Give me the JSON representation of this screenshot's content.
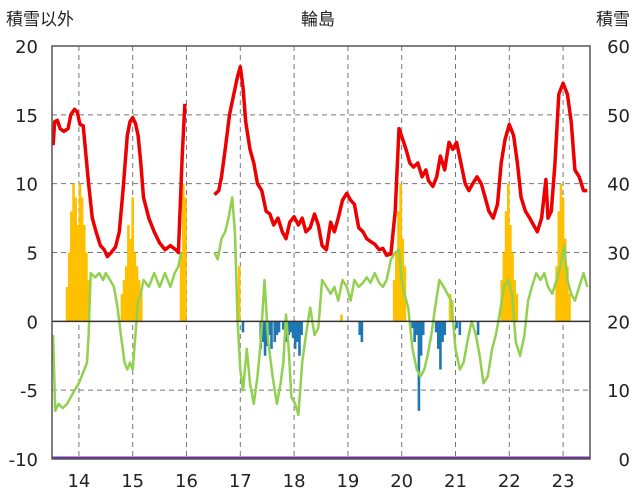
{
  "chart_data": {
    "type": "line",
    "title": "輪島",
    "left_axis_label": "積雪以外",
    "right_axis_label": "積雪",
    "left_ylim": [
      -10,
      20
    ],
    "left_ticks": [
      "20",
      "15",
      "10",
      "5",
      "0",
      "-5",
      "-10"
    ],
    "right_ylim": [
      0,
      60
    ],
    "right_ticks": [
      "60",
      "50",
      "40",
      "30",
      "20",
      "10",
      "0"
    ],
    "x_ticks": [
      {
        "label": "14",
        "x": 1.0
      },
      {
        "label": "15",
        "x": 2.0
      },
      {
        "label": "16",
        "x": 3.0
      },
      {
        "label": "17",
        "x": 4.0
      },
      {
        "label": "18",
        "x": 5.0
      },
      {
        "label": "19",
        "x": 6.0
      },
      {
        "label": "20",
        "x": 7.0
      },
      {
        "label": "21",
        "x": 8.0
      },
      {
        "label": "22",
        "x": 9.0
      },
      {
        "label": "23",
        "x": 10.0
      }
    ],
    "xlim": [
      0.5,
      10.5
    ],
    "grid": true,
    "colors": {
      "red": "#ee0000",
      "green": "#92d050",
      "orange": "#ffc000",
      "blue": "#1f77b4",
      "purple": "#7030a0"
    },
    "series_red": [
      [
        0.52,
        12.8
      ],
      [
        0.55,
        14.5
      ],
      [
        0.6,
        14.6
      ],
      [
        0.65,
        14.0
      ],
      [
        0.72,
        13.8
      ],
      [
        0.8,
        14.0
      ],
      [
        0.85,
        15.0
      ],
      [
        0.92,
        15.4
      ],
      [
        0.97,
        15.2
      ],
      [
        1.02,
        14.3
      ],
      [
        1.08,
        14.2
      ],
      [
        1.12,
        12.5
      ],
      [
        1.18,
        10.0
      ],
      [
        1.25,
        7.5
      ],
      [
        1.32,
        6.5
      ],
      [
        1.4,
        5.5
      ],
      [
        1.47,
        5.2
      ],
      [
        1.53,
        4.7
      ],
      [
        1.6,
        5.0
      ],
      [
        1.68,
        5.4
      ],
      [
        1.75,
        6.5
      ],
      [
        1.82,
        9.5
      ],
      [
        1.9,
        13.5
      ],
      [
        1.95,
        14.5
      ],
      [
        2.0,
        14.8
      ],
      [
        2.05,
        14.4
      ],
      [
        2.1,
        13.5
      ],
      [
        2.15,
        11.5
      ],
      [
        2.2,
        9.0
      ],
      [
        2.3,
        7.5
      ],
      [
        2.4,
        6.5
      ],
      [
        2.5,
        5.7
      ],
      [
        2.6,
        5.2
      ],
      [
        2.7,
        5.5
      ],
      [
        2.8,
        5.2
      ],
      [
        2.85,
        5.0
      ],
      [
        2.92,
        12.0
      ],
      [
        2.97,
        15.8
      ],
      [
        3.52,
        9.2
      ],
      [
        3.6,
        9.5
      ],
      [
        3.65,
        10.5
      ],
      [
        3.72,
        12.5
      ],
      [
        3.8,
        15.0
      ],
      [
        3.88,
        16.5
      ],
      [
        3.95,
        17.8
      ],
      [
        4.0,
        18.5
      ],
      [
        4.05,
        17.0
      ],
      [
        4.1,
        14.5
      ],
      [
        4.18,
        12.5
      ],
      [
        4.25,
        11.5
      ],
      [
        4.32,
        10.0
      ],
      [
        4.4,
        9.5
      ],
      [
        4.48,
        8.0
      ],
      [
        4.55,
        7.8
      ],
      [
        4.62,
        7.0
      ],
      [
        4.7,
        7.5
      ],
      [
        4.78,
        6.5
      ],
      [
        4.85,
        6.0
      ],
      [
        4.92,
        7.2
      ],
      [
        5.0,
        7.6
      ],
      [
        5.08,
        7.0
      ],
      [
        5.15,
        7.5
      ],
      [
        5.22,
        6.5
      ],
      [
        5.3,
        6.8
      ],
      [
        5.38,
        7.8
      ],
      [
        5.45,
        7.0
      ],
      [
        5.52,
        5.5
      ],
      [
        5.6,
        5.2
      ],
      [
        5.68,
        7.2
      ],
      [
        5.75,
        6.5
      ],
      [
        5.82,
        7.5
      ],
      [
        5.9,
        8.8
      ],
      [
        5.98,
        9.3
      ],
      [
        6.05,
        8.8
      ],
      [
        6.12,
        8.5
      ],
      [
        6.2,
        6.8
      ],
      [
        6.28,
        6.5
      ],
      [
        6.35,
        6.0
      ],
      [
        6.42,
        5.8
      ],
      [
        6.5,
        5.6
      ],
      [
        6.58,
        5.2
      ],
      [
        6.65,
        5.3
      ],
      [
        6.72,
        4.8
      ],
      [
        6.8,
        4.9
      ],
      [
        6.88,
        8.0
      ],
      [
        6.95,
        14.0
      ],
      [
        7.02,
        13.2
      ],
      [
        7.08,
        12.5
      ],
      [
        7.15,
        11.5
      ],
      [
        7.22,
        11.2
      ],
      [
        7.3,
        11.5
      ],
      [
        7.38,
        10.5
      ],
      [
        7.45,
        11.0
      ],
      [
        7.5,
        10.2
      ],
      [
        7.58,
        9.8
      ],
      [
        7.65,
        10.5
      ],
      [
        7.72,
        12.0
      ],
      [
        7.8,
        11.0
      ],
      [
        7.88,
        13.0
      ],
      [
        7.95,
        12.5
      ],
      [
        8.02,
        13.0
      ],
      [
        8.1,
        11.5
      ],
      [
        8.18,
        10.0
      ],
      [
        8.25,
        9.5
      ],
      [
        8.32,
        10.0
      ],
      [
        8.4,
        10.5
      ],
      [
        8.48,
        10.0
      ],
      [
        8.55,
        9.0
      ],
      [
        8.62,
        8.0
      ],
      [
        8.7,
        7.5
      ],
      [
        8.78,
        8.5
      ],
      [
        8.85,
        11.5
      ],
      [
        8.92,
        13.2
      ],
      [
        9.0,
        14.3
      ],
      [
        9.08,
        13.5
      ],
      [
        9.15,
        11.5
      ],
      [
        9.22,
        9.0
      ],
      [
        9.3,
        8.0
      ],
      [
        9.38,
        7.5
      ],
      [
        9.45,
        7.0
      ],
      [
        9.52,
        6.5
      ],
      [
        9.6,
        7.5
      ],
      [
        9.68,
        10.3
      ],
      [
        9.72,
        7.5
      ],
      [
        9.78,
        8.0
      ],
      [
        9.85,
        11.5
      ],
      [
        9.92,
        16.5
      ],
      [
        10.0,
        17.3
      ],
      [
        10.08,
        16.5
      ],
      [
        10.15,
        14.5
      ],
      [
        10.22,
        11.0
      ],
      [
        10.3,
        10.5
      ],
      [
        10.38,
        9.5
      ],
      [
        10.45,
        9.5
      ]
    ],
    "series_green": [
      [
        0.52,
        -1.0
      ],
      [
        0.56,
        -6.5
      ],
      [
        0.62,
        -6.0
      ],
      [
        0.7,
        -6.3
      ],
      [
        0.78,
        -6.0
      ],
      [
        0.85,
        -5.5
      ],
      [
        0.92,
        -5.0
      ],
      [
        1.0,
        -4.5
      ],
      [
        1.05,
        -4.0
      ],
      [
        1.1,
        -3.5
      ],
      [
        1.15,
        -3.0
      ],
      [
        1.18,
        -1.0
      ],
      [
        1.22,
        3.5
      ],
      [
        1.3,
        3.2
      ],
      [
        1.38,
        3.5
      ],
      [
        1.45,
        3.0
      ],
      [
        1.5,
        3.5
      ],
      [
        1.58,
        3.0
      ],
      [
        1.65,
        2.5
      ],
      [
        1.72,
        1.0
      ],
      [
        1.78,
        -1.0
      ],
      [
        1.85,
        -3.0
      ],
      [
        1.9,
        -3.5
      ],
      [
        1.95,
        -3.0
      ],
      [
        2.0,
        -3.5
      ],
      [
        2.05,
        -1.0
      ],
      [
        2.1,
        1.5
      ],
      [
        2.15,
        2.0
      ],
      [
        2.2,
        3.0
      ],
      [
        2.3,
        2.5
      ],
      [
        2.4,
        3.5
      ],
      [
        2.5,
        2.5
      ],
      [
        2.6,
        3.5
      ],
      [
        2.7,
        2.5
      ],
      [
        2.78,
        3.5
      ],
      [
        2.85,
        4.0
      ],
      [
        2.9,
        5.0
      ],
      [
        3.52,
        5.0
      ],
      [
        3.58,
        4.5
      ],
      [
        3.65,
        6.0
      ],
      [
        3.72,
        6.5
      ],
      [
        3.78,
        7.5
      ],
      [
        3.85,
        9.0
      ],
      [
        3.9,
        6.5
      ],
      [
        3.95,
        0.0
      ],
      [
        4.0,
        -3.5
      ],
      [
        4.05,
        -5.0
      ],
      [
        4.12,
        -2.0
      ],
      [
        4.18,
        -4.5
      ],
      [
        4.25,
        -6.0
      ],
      [
        4.32,
        -4.0
      ],
      [
        4.38,
        -1.5
      ],
      [
        4.45,
        3.0
      ],
      [
        4.52,
        -1.5
      ],
      [
        4.6,
        -4.0
      ],
      [
        4.68,
        -6.0
      ],
      [
        4.75,
        -4.5
      ],
      [
        4.8,
        -3.0
      ],
      [
        4.85,
        0.5
      ],
      [
        4.9,
        -2.0
      ],
      [
        4.95,
        -5.5
      ],
      [
        5.02,
        -6.0
      ],
      [
        5.08,
        -6.8
      ],
      [
        5.15,
        -3.0
      ],
      [
        5.22,
        -1.0
      ],
      [
        5.3,
        1.0
      ],
      [
        5.38,
        -1.0
      ],
      [
        5.45,
        -0.5
      ],
      [
        5.52,
        3.0
      ],
      [
        5.6,
        2.5
      ],
      [
        5.68,
        2.0
      ],
      [
        5.75,
        2.5
      ],
      [
        5.82,
        1.5
      ],
      [
        5.9,
        3.0
      ],
      [
        5.98,
        2.5
      ],
      [
        6.05,
        1.5
      ],
      [
        6.12,
        3.0
      ],
      [
        6.2,
        2.5
      ],
      [
        6.28,
        2.8
      ],
      [
        6.35,
        3.2
      ],
      [
        6.42,
        2.8
      ],
      [
        6.5,
        3.5
      ],
      [
        6.58,
        2.8
      ],
      [
        6.65,
        2.5
      ],
      [
        6.72,
        3.0
      ],
      [
        6.8,
        4.5
      ],
      [
        6.88,
        5.0
      ],
      [
        6.95,
        5.2
      ],
      [
        7.0,
        3.0
      ],
      [
        7.05,
        2.0
      ],
      [
        7.12,
        1.0
      ],
      [
        7.2,
        -2.0
      ],
      [
        7.28,
        -3.5
      ],
      [
        7.35,
        -4.0
      ],
      [
        7.42,
        -3.5
      ],
      [
        7.48,
        -2.5
      ],
      [
        7.55,
        -1.0
      ],
      [
        7.62,
        1.0
      ],
      [
        7.7,
        3.0
      ],
      [
        7.78,
        2.5
      ],
      [
        7.85,
        2.0
      ],
      [
        7.92,
        1.5
      ],
      [
        8.0,
        -2.0
      ],
      [
        8.08,
        -3.5
      ],
      [
        8.15,
        -3.0
      ],
      [
        8.22,
        -1.5
      ],
      [
        8.3,
        0.0
      ],
      [
        8.38,
        -1.0
      ],
      [
        8.45,
        -2.5
      ],
      [
        8.52,
        -4.5
      ],
      [
        8.6,
        -4.0
      ],
      [
        8.68,
        -2.0
      ],
      [
        8.75,
        -1.0
      ],
      [
        8.82,
        0.5
      ],
      [
        8.9,
        2.5
      ],
      [
        8.98,
        3.0
      ],
      [
        9.05,
        2.0
      ],
      [
        9.12,
        -1.5
      ],
      [
        9.2,
        -2.5
      ],
      [
        9.28,
        -1.0
      ],
      [
        9.35,
        1.5
      ],
      [
        9.42,
        2.5
      ],
      [
        9.5,
        3.5
      ],
      [
        9.58,
        3.0
      ],
      [
        9.65,
        3.5
      ],
      [
        9.72,
        2.5
      ],
      [
        9.8,
        2.0
      ],
      [
        9.88,
        3.0
      ],
      [
        9.95,
        4.0
      ],
      [
        10.02,
        5.5
      ],
      [
        10.08,
        3.0
      ],
      [
        10.15,
        2.0
      ],
      [
        10.22,
        1.5
      ],
      [
        10.3,
        2.5
      ],
      [
        10.38,
        3.5
      ],
      [
        10.45,
        2.5
      ]
    ],
    "bars_snow": [
      [
        0.78,
        2.5
      ],
      [
        0.82,
        5.0
      ],
      [
        0.86,
        8.0
      ],
      [
        0.9,
        10.0
      ],
      [
        0.94,
        9.0
      ],
      [
        0.98,
        7.0
      ],
      [
        1.02,
        10.0
      ],
      [
        1.06,
        9.0
      ],
      [
        1.1,
        7.0
      ],
      [
        1.14,
        5.0
      ],
      [
        1.18,
        3.0
      ],
      [
        1.8,
        2.0
      ],
      [
        1.84,
        3.0
      ],
      [
        1.88,
        4.0
      ],
      [
        1.92,
        7.0
      ],
      [
        1.96,
        6.0
      ],
      [
        2.0,
        9.0
      ],
      [
        2.04,
        5.0
      ],
      [
        2.08,
        4.0
      ],
      [
        2.12,
        3.0
      ],
      [
        2.16,
        2.0
      ],
      [
        2.9,
        5.0
      ],
      [
        2.94,
        10.0
      ],
      [
        2.98,
        9.0
      ],
      [
        3.95,
        2.0
      ],
      [
        3.98,
        4.0
      ],
      [
        5.88,
        0.5
      ],
      [
        6.86,
        3.0
      ],
      [
        6.9,
        5.0
      ],
      [
        6.94,
        8.0
      ],
      [
        6.98,
        10.0
      ],
      [
        7.02,
        6.0
      ],
      [
        7.06,
        4.0
      ],
      [
        7.9,
        2.0
      ],
      [
        7.94,
        1.5
      ],
      [
        8.86,
        3.0
      ],
      [
        8.9,
        5.0
      ],
      [
        8.94,
        8.0
      ],
      [
        8.98,
        10.0
      ],
      [
        9.02,
        7.0
      ],
      [
        9.06,
        5.0
      ],
      [
        9.1,
        3.0
      ],
      [
        9.14,
        2.0
      ],
      [
        9.88,
        4.0
      ],
      [
        9.92,
        8.0
      ],
      [
        9.96,
        10.0
      ],
      [
        10.0,
        9.0
      ],
      [
        10.04,
        6.0
      ],
      [
        10.08,
        4.0
      ],
      [
        10.12,
        2.0
      ]
    ],
    "bars_blue": [
      [
        4.05,
        -0.8
      ],
      [
        4.38,
        -2.0
      ],
      [
        4.42,
        -1.5
      ],
      [
        4.46,
        -2.5
      ],
      [
        4.5,
        -1.8
      ],
      [
        4.54,
        -1.0
      ],
      [
        4.58,
        -2.0
      ],
      [
        4.64,
        -1.5
      ],
      [
        4.68,
        -1.0
      ],
      [
        4.72,
        -0.8
      ],
      [
        4.8,
        -0.6
      ],
      [
        4.86,
        -1.5
      ],
      [
        4.9,
        -1.0
      ],
      [
        4.94,
        -0.8
      ],
      [
        4.98,
        -1.2
      ],
      [
        5.02,
        -2.0
      ],
      [
        5.06,
        -1.5
      ],
      [
        5.1,
        -2.5
      ],
      [
        5.14,
        -1.0
      ],
      [
        6.22,
        -1.0
      ],
      [
        6.26,
        -1.5
      ],
      [
        7.2,
        -0.5
      ],
      [
        7.24,
        -1.5
      ],
      [
        7.28,
        -1.0
      ],
      [
        7.32,
        -6.5
      ],
      [
        7.36,
        -2.5
      ],
      [
        7.4,
        -1.0
      ],
      [
        7.64,
        -0.8
      ],
      [
        7.68,
        -2.0
      ],
      [
        7.72,
        -3.5
      ],
      [
        7.76,
        -1.5
      ],
      [
        7.8,
        -1.0
      ],
      [
        8.02,
        -0.5
      ],
      [
        8.08,
        -1.0
      ],
      [
        8.42,
        -1.0
      ]
    ]
  }
}
